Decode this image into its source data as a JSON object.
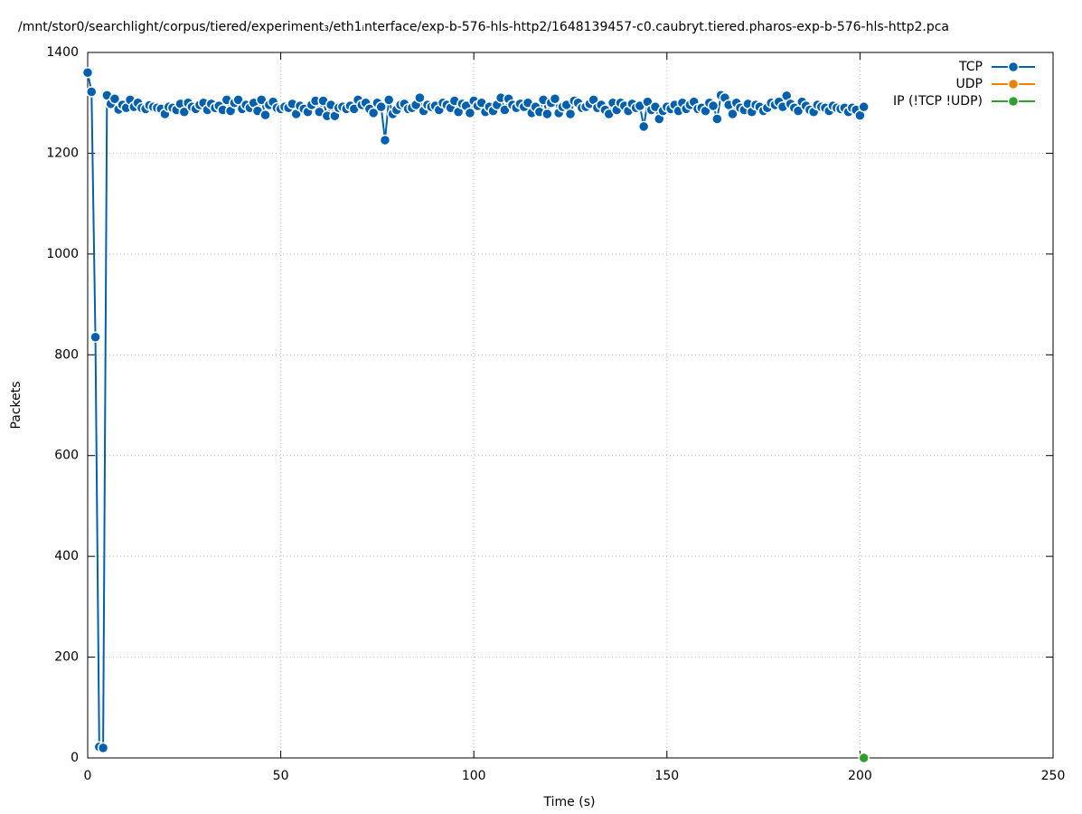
{
  "chart_data": {
    "type": "line",
    "title": "/mnt/stor0/searchlight/corpus/tiered/experiment₃/eth1ᵢnterface/exp-b-576-hls-http2/1648139457-c0.caubryt.tiered.pharos-exp-b-576-hls-http2.pca",
    "xlabel": "Time (s)",
    "ylabel": "Packets",
    "xlim": [
      0,
      250
    ],
    "xticks": [
      0,
      50,
      100,
      150,
      200,
      250
    ],
    "ylim": [
      0,
      1400
    ],
    "yticks": [
      0,
      200,
      400,
      600,
      800,
      1000,
      1200,
      1400
    ],
    "grid": true,
    "legend": "top-right",
    "series": [
      {
        "name": "TCP",
        "color": "#0060ad",
        "x": [
          0,
          1,
          2,
          3,
          4,
          5,
          6,
          7,
          8,
          9,
          10,
          11,
          12,
          13,
          14,
          15,
          16,
          17,
          18,
          19,
          20,
          21,
          22,
          23,
          24,
          25,
          26,
          27,
          28,
          29,
          30,
          31,
          32,
          33,
          34,
          35,
          36,
          37,
          38,
          39,
          40,
          41,
          42,
          43,
          44,
          45,
          46,
          47,
          48,
          49,
          50,
          51,
          52,
          53,
          54,
          55,
          56,
          57,
          58,
          59,
          60,
          61,
          62,
          63,
          64,
          65,
          66,
          67,
          68,
          69,
          70,
          71,
          72,
          73,
          74,
          75,
          76,
          77,
          78,
          79,
          80,
          81,
          82,
          83,
          84,
          85,
          86,
          87,
          88,
          89,
          90,
          91,
          92,
          93,
          94,
          95,
          96,
          97,
          98,
          99,
          100,
          101,
          102,
          103,
          104,
          105,
          106,
          107,
          108,
          109,
          110,
          111,
          112,
          113,
          114,
          115,
          116,
          117,
          118,
          119,
          120,
          121,
          122,
          123,
          124,
          125,
          126,
          127,
          128,
          129,
          130,
          131,
          132,
          133,
          134,
          135,
          136,
          137,
          138,
          139,
          140,
          141,
          142,
          143,
          144,
          145,
          146,
          147,
          148,
          149,
          150,
          151,
          152,
          153,
          154,
          155,
          156,
          157,
          158,
          159,
          160,
          161,
          162,
          163,
          164,
          165,
          166,
          167,
          168,
          169,
          170,
          171,
          172,
          173,
          174,
          175,
          176,
          177,
          178,
          179,
          180,
          181,
          182,
          183,
          184,
          185,
          186,
          187,
          188,
          189,
          190,
          191,
          192,
          193,
          194,
          195,
          196,
          197,
          198,
          199,
          200,
          201
        ],
        "values": [
          1360,
          1322,
          835,
          22,
          20,
          1315,
          1298,
          1308,
          1287,
          1296,
          1290,
          1306,
          1292,
          1300,
          1290,
          1288,
          1295,
          1292,
          1290,
          1288,
          1278,
          1292,
          1290,
          1286,
          1298,
          1282,
          1300,
          1292,
          1288,
          1296,
          1300,
          1286,
          1298,
          1290,
          1294,
          1286,
          1306,
          1284,
          1300,
          1306,
          1288,
          1296,
          1290,
          1300,
          1284,
          1306,
          1276,
          1296,
          1302,
          1290,
          1288,
          1292,
          1290,
          1298,
          1278,
          1294,
          1288,
          1282,
          1296,
          1304,
          1282,
          1304,
          1274,
          1296,
          1274,
          1290,
          1292,
          1288,
          1294,
          1288,
          1306,
          1296,
          1300,
          1288,
          1280,
          1300,
          1292,
          1226,
          1306,
          1278,
          1286,
          1296,
          1298,
          1288,
          1290,
          1296,
          1310,
          1284,
          1296,
          1292,
          1294,
          1286,
          1300,
          1296,
          1290,
          1304,
          1282,
          1298,
          1294,
          1280,
          1304,
          1294,
          1300,
          1282,
          1292,
          1284,
          1296,
          1310,
          1286,
          1308,
          1296,
          1290,
          1298,
          1292,
          1300,
          1280,
          1292,
          1282,
          1306,
          1278,
          1300,
          1308,
          1280,
          1292,
          1296,
          1278,
          1304,
          1300,
          1290,
          1292,
          1298,
          1306,
          1290,
          1296,
          1286,
          1278,
          1300,
          1286,
          1300,
          1294,
          1284,
          1298,
          1290,
          1294,
          1253,
          1302,
          1286,
          1292,
          1268,
          1284,
          1292,
          1288,
          1296,
          1284,
          1300,
          1288,
          1296,
          1302,
          1288,
          1290,
          1284,
          1300,
          1294,
          1268,
          1315,
          1310,
          1296,
          1278,
          1300,
          1290,
          1286,
          1298,
          1282,
          1296,
          1292,
          1284,
          1290,
          1300,
          1296,
          1302,
          1292,
          1314,
          1298,
          1290,
          1284,
          1302,
          1294,
          1286,
          1282,
          1296,
          1292,
          1290,
          1284,
          1294,
          1290,
          1288,
          1290,
          1282,
          1290,
          1286,
          1275,
          1292
        ]
      },
      {
        "name": "UDP",
        "color": "#f0800a",
        "x": [],
        "values": []
      },
      {
        "name": "IP (!TCP  !UDP)",
        "color": "#2ca02c",
        "x": [
          201
        ],
        "values": [
          0
        ]
      }
    ]
  }
}
